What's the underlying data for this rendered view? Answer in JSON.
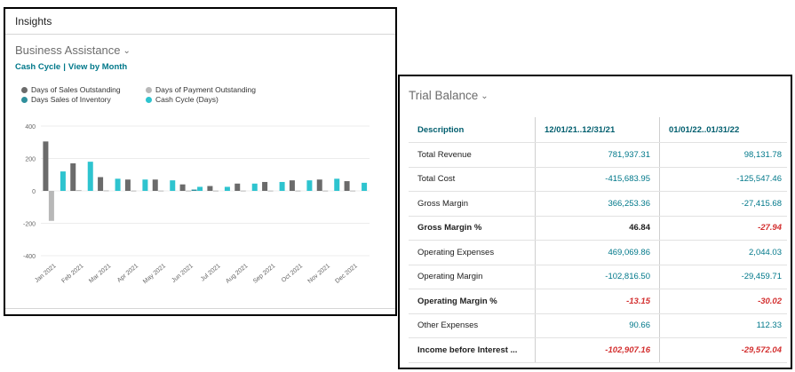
{
  "insights": {
    "title": "Insights",
    "part_title": "Business Assistance",
    "cash_cycle_link": "Cash Cycle",
    "separator": "|",
    "view_link": "View by Month",
    "legend": [
      {
        "label": "Days of Sales Outstanding",
        "color": "#6b6b6b"
      },
      {
        "label": "Days of Payment Outstanding",
        "color": "#b8b8b8"
      },
      {
        "label": "Days Sales of Inventory",
        "color": "#2f8f9c"
      },
      {
        "label": "Cash Cycle (Days)",
        "color": "#2ec4cf"
      }
    ]
  },
  "chart_data": {
    "type": "bar",
    "categories": [
      "Jan 2021",
      "Feb 2021",
      "Mar 2021",
      "Apr 2021",
      "May 2021",
      "Jun 2021",
      "Jul 2021",
      "Aug 2021",
      "Sep 2021",
      "Oct 2021",
      "Nov 2021",
      "Dec 2021"
    ],
    "series": [
      {
        "name": "Days of Sales Outstanding",
        "color": "#6b6b6b",
        "values": [
          305,
          170,
          85,
          70,
          70,
          40,
          30,
          45,
          55,
          65,
          70,
          60
        ]
      },
      {
        "name": "Days of Payment Outstanding",
        "color": "#b8b8b8",
        "values": [
          -185,
          5,
          3,
          2,
          2,
          2,
          2,
          2,
          2,
          2,
          2,
          2
        ]
      },
      {
        "name": "Days Sales of Inventory",
        "color": "#2f8f9c",
        "values": [
          0,
          0,
          0,
          0,
          0,
          8,
          0,
          0,
          0,
          0,
          0,
          0
        ]
      },
      {
        "name": "Cash Cycle (Days)",
        "color": "#2ec4cf",
        "values": [
          120,
          180,
          75,
          70,
          65,
          25,
          25,
          45,
          55,
          65,
          75,
          50
        ]
      }
    ],
    "yticks": [
      400,
      200,
      0,
      -200,
      -400
    ],
    "ylim": [
      -400,
      400
    ],
    "grid": true
  },
  "trial_balance": {
    "title": "Trial Balance",
    "headers": [
      "Description",
      "12/01/21..12/31/21",
      "01/01/22..01/31/22"
    ],
    "rows": [
      {
        "desc": "Total Revenue",
        "v1": "781,937.31",
        "v2": "98,131.78",
        "bold": false,
        "neg1": false,
        "neg2": false
      },
      {
        "desc": "Total Cost",
        "v1": "-415,683.95",
        "v2": "-125,547.46",
        "bold": false,
        "neg1": false,
        "neg2": false
      },
      {
        "desc": "Gross Margin",
        "v1": "366,253.36",
        "v2": "-27,415.68",
        "bold": false,
        "neg1": false,
        "neg2": false
      },
      {
        "desc": "Gross Margin %",
        "v1": "46.84",
        "v2": "-27.94",
        "bold": true,
        "neg1": false,
        "neg2": true
      },
      {
        "desc": "Operating Expenses",
        "v1": "469,069.86",
        "v2": "2,044.03",
        "bold": false,
        "neg1": false,
        "neg2": false
      },
      {
        "desc": "Operating Margin",
        "v1": "-102,816.50",
        "v2": "-29,459.71",
        "bold": false,
        "neg1": false,
        "neg2": false
      },
      {
        "desc": "Operating Margin %",
        "v1": "-13.15",
        "v2": "-30.02",
        "bold": true,
        "neg1": true,
        "neg2": true
      },
      {
        "desc": "Other Expenses",
        "v1": "90.66",
        "v2": "112.33",
        "bold": false,
        "neg1": false,
        "neg2": false
      },
      {
        "desc": "Income before Interest ...",
        "v1": "-102,907.16",
        "v2": "-29,572.04",
        "bold": true,
        "neg1": true,
        "neg2": true
      }
    ]
  }
}
